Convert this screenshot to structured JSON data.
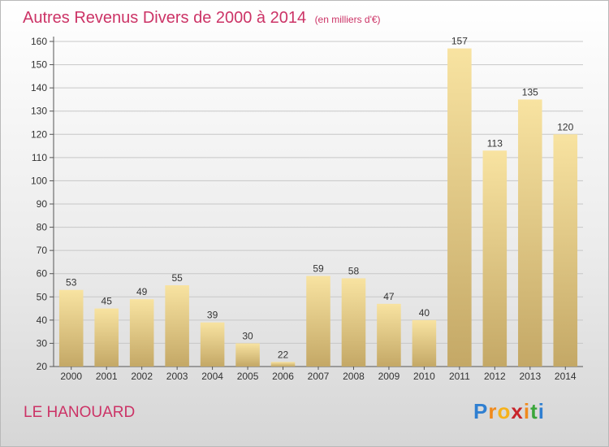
{
  "header": {
    "title": "Autres Revenus Divers de 2000 à 2014",
    "subtitle": "(en milliers d'€)"
  },
  "footer": {
    "commune": "LE HANOUARD",
    "logo_letters": [
      "P",
      "r",
      "o",
      "x",
      "i",
      "t",
      "i"
    ],
    "logo_colors": [
      "#2f7fd1",
      "#f08a1c",
      "#f6b21b",
      "#c8252b",
      "#f08a1c",
      "#3aa63a",
      "#2f7fd1"
    ]
  },
  "colors": {
    "bar_light": "#f8e3a1",
    "bar_dark": "#c4a866",
    "title": "#cc3366",
    "grid": "#c7c7c7"
  },
  "chart_data": {
    "type": "bar",
    "title": "Autres Revenus Divers de 2000 à 2014",
    "subtitle": "(en milliers d'€)",
    "categories": [
      "2000",
      "2001",
      "2002",
      "2003",
      "2004",
      "2005",
      "2006",
      "2007",
      "2008",
      "2009",
      "2010",
      "2011",
      "2012",
      "2013",
      "2014"
    ],
    "values": [
      53,
      45,
      49,
      55,
      39,
      30,
      22,
      59,
      58,
      47,
      40,
      157,
      113,
      135,
      120
    ],
    "ylim": [
      20,
      160
    ],
    "yticks": [
      20,
      30,
      40,
      50,
      60,
      70,
      80,
      90,
      100,
      110,
      120,
      130,
      140,
      150,
      160
    ],
    "grid": "horizontal",
    "legend": "none"
  }
}
